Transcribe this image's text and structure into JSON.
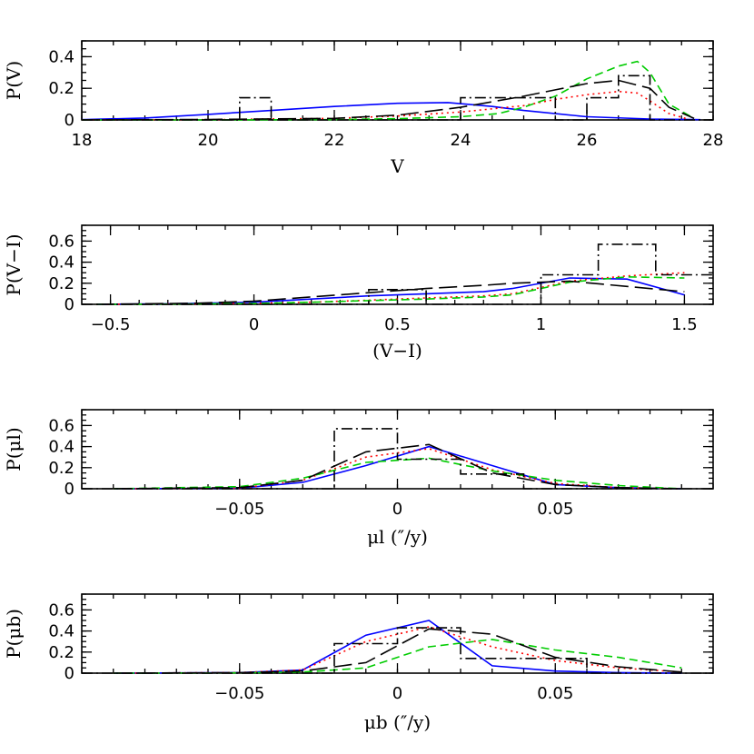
{
  "chart_data": [
    {
      "type": "line",
      "xlabel": "V",
      "ylabel": "P(V)",
      "xlim": [
        18,
        28
      ],
      "ylim": [
        0,
        0.5
      ],
      "xticks": [
        "18",
        "20",
        "22",
        "24",
        "26",
        "28"
      ],
      "yticks": [
        "0",
        "0.2",
        "0.4"
      ],
      "grid": false,
      "series": [
        {
          "style": "solid",
          "color": "#0000ff",
          "x": [
            18,
            19,
            20,
            21,
            22,
            23,
            23.8,
            24.5,
            25,
            26,
            27,
            27.8
          ],
          "y": [
            0.002,
            0.012,
            0.035,
            0.06,
            0.085,
            0.105,
            0.11,
            0.085,
            0.06,
            0.02,
            0.006,
            0.002
          ]
        },
        {
          "style": "dotted",
          "color": "#ff0000",
          "x": [
            18,
            20,
            22,
            23,
            24,
            25,
            25.5,
            26,
            26.5,
            26.8,
            27,
            27.3,
            27.6
          ],
          "y": [
            0,
            0.002,
            0.01,
            0.025,
            0.05,
            0.09,
            0.13,
            0.16,
            0.18,
            0.17,
            0.12,
            0.04,
            0.005
          ]
        },
        {
          "style": "dashed-short",
          "color": "#00cc00",
          "x": [
            18,
            20,
            22,
            23,
            24,
            24.6,
            25,
            25.5,
            26,
            26.5,
            26.8,
            27,
            27.3,
            27.7
          ],
          "y": [
            0,
            0,
            0.002,
            0.008,
            0.02,
            0.04,
            0.08,
            0.15,
            0.26,
            0.34,
            0.37,
            0.3,
            0.1,
            0.01
          ]
        },
        {
          "style": "dashed-long",
          "color": "#000000",
          "x": [
            18,
            20,
            22,
            23,
            24,
            25,
            25.5,
            26,
            26.5,
            27,
            27.3,
            27.7
          ],
          "y": [
            0,
            0.003,
            0.01,
            0.03,
            0.08,
            0.15,
            0.19,
            0.23,
            0.25,
            0.2,
            0.08,
            0.01
          ]
        },
        {
          "style": "dashdot-hist",
          "color": "#000000",
          "x": [
            18,
            20.5,
            20.5,
            21,
            21,
            24,
            24,
            25.5,
            25.5,
            26,
            26,
            26.5,
            26.5,
            27,
            27,
            28
          ],
          "y": [
            0,
            0,
            0.14,
            0.14,
            0,
            0,
            0.14,
            0.14,
            0,
            0,
            0.14,
            0.14,
            0.28,
            0.28,
            0,
            0
          ]
        }
      ]
    },
    {
      "type": "line",
      "xlabel": "(V−I)",
      "ylabel": "P(V−I)",
      "xlim": [
        -0.6,
        1.6
      ],
      "ylim": [
        0,
        0.75
      ],
      "xticks": [
        "−0.5",
        "0",
        "0.5",
        "1",
        "1.5"
      ],
      "yticks": [
        "0",
        "0.2",
        "0.4",
        "0.6"
      ],
      "grid": false,
      "series": [
        {
          "style": "solid",
          "color": "#0000ff",
          "x": [
            -0.55,
            -0.3,
            0,
            0.2,
            0.4,
            0.6,
            0.8,
            0.9,
            1.1,
            1.3,
            1.5
          ],
          "y": [
            0,
            0.005,
            0.02,
            0.05,
            0.08,
            0.1,
            0.12,
            0.15,
            0.25,
            0.24,
            0.09
          ]
        },
        {
          "style": "dotted",
          "color": "#ff0000",
          "x": [
            -0.55,
            -0.2,
            0,
            0.2,
            0.4,
            0.6,
            0.8,
            0.9,
            1.1,
            1.3,
            1.5
          ],
          "y": [
            0,
            0.005,
            0.01,
            0.02,
            0.04,
            0.06,
            0.08,
            0.1,
            0.22,
            0.27,
            0.3
          ]
        },
        {
          "style": "dashed-short",
          "color": "#00cc00",
          "x": [
            -0.55,
            -0.2,
            0,
            0.2,
            0.4,
            0.6,
            0.8,
            0.9,
            1.1,
            1.3,
            1.5
          ],
          "y": [
            0,
            0.004,
            0.008,
            0.02,
            0.035,
            0.05,
            0.07,
            0.09,
            0.21,
            0.26,
            0.25
          ]
        },
        {
          "style": "dashed-long",
          "color": "#000000",
          "x": [
            -0.55,
            -0.2,
            0,
            0.2,
            0.4,
            0.6,
            0.8,
            0.9,
            1.1,
            1.3,
            1.5
          ],
          "y": [
            0,
            0.01,
            0.03,
            0.07,
            0.11,
            0.15,
            0.18,
            0.2,
            0.22,
            0.17,
            0.12
          ]
        },
        {
          "style": "dashdot-hist",
          "color": "#000000",
          "x": [
            -0.6,
            0.4,
            0.4,
            0.6,
            0.6,
            1.0,
            1.0,
            1.2,
            1.2,
            1.4,
            1.4,
            1.6
          ],
          "y": [
            0,
            0,
            0.14,
            0.14,
            0,
            0,
            0.28,
            0.28,
            0.57,
            0.57,
            0.28,
            0.28
          ]
        }
      ]
    },
    {
      "type": "line",
      "xlabel": "μl (″/y)",
      "ylabel": "P(μl)",
      "xlim": [
        -0.1,
        0.1
      ],
      "ylim": [
        0,
        0.75
      ],
      "xticks": [
        "−0.05",
        "0",
        "0.05"
      ],
      "yticks": [
        "0",
        "0.2",
        "0.4",
        "0.6"
      ],
      "grid": false,
      "series": [
        {
          "style": "solid",
          "color": "#0000ff",
          "x": [
            -0.09,
            -0.05,
            -0.03,
            -0.01,
            0.01,
            0.03,
            0.05,
            0.07,
            0.09
          ],
          "y": [
            0,
            0.005,
            0.06,
            0.22,
            0.4,
            0.22,
            0.04,
            0.01,
            0
          ]
        },
        {
          "style": "dotted",
          "color": "#ff0000",
          "x": [
            -0.09,
            -0.05,
            -0.03,
            -0.01,
            0.01,
            0.03,
            0.05,
            0.07,
            0.09
          ],
          "y": [
            0,
            0.005,
            0.08,
            0.3,
            0.38,
            0.18,
            0.05,
            0.01,
            0
          ]
        },
        {
          "style": "dashed-short",
          "color": "#00cc00",
          "x": [
            -0.09,
            -0.05,
            -0.03,
            -0.01,
            0.01,
            0.03,
            0.05,
            0.07,
            0.09
          ],
          "y": [
            0,
            0.02,
            0.1,
            0.25,
            0.29,
            0.17,
            0.08,
            0.03,
            0
          ]
        },
        {
          "style": "dashed-long",
          "color": "#000000",
          "x": [
            -0.09,
            -0.05,
            -0.03,
            -0.01,
            0.01,
            0.03,
            0.05,
            0.07,
            0.09
          ],
          "y": [
            0,
            0.01,
            0.08,
            0.35,
            0.42,
            0.15,
            0.04,
            0.01,
            0
          ]
        },
        {
          "style": "dashdot-hist",
          "color": "#000000",
          "x": [
            -0.1,
            -0.02,
            -0.02,
            0,
            0,
            0.02,
            0.02,
            0.04,
            0.04,
            0.1
          ],
          "y": [
            0,
            0,
            0.57,
            0.57,
            0.28,
            0.28,
            0.14,
            0.14,
            0,
            0
          ]
        }
      ]
    },
    {
      "type": "line",
      "xlabel": "μb (″/y)",
      "ylabel": "P(μb)",
      "xlim": [
        -0.1,
        0.1
      ],
      "ylim": [
        0,
        0.75
      ],
      "xticks": [
        "−0.05",
        "0",
        "0.05"
      ],
      "yticks": [
        "0",
        "0.2",
        "0.4",
        "0.6"
      ],
      "grid": false,
      "series": [
        {
          "style": "solid",
          "color": "#0000ff",
          "x": [
            -0.09,
            -0.05,
            -0.03,
            -0.01,
            0.01,
            0.03,
            0.05,
            0.07,
            0.09
          ],
          "y": [
            0,
            0.005,
            0.03,
            0.36,
            0.5,
            0.07,
            0.02,
            0.005,
            0
          ]
        },
        {
          "style": "dotted",
          "color": "#ff0000",
          "x": [
            -0.09,
            -0.05,
            -0.03,
            -0.01,
            0.01,
            0.03,
            0.05,
            0.07,
            0.09
          ],
          "y": [
            0,
            0.005,
            0.03,
            0.3,
            0.44,
            0.25,
            0.12,
            0.05,
            0.01
          ]
        },
        {
          "style": "dashed-short",
          "color": "#00cc00",
          "x": [
            -0.09,
            -0.05,
            -0.03,
            -0.01,
            0.01,
            0.03,
            0.05,
            0.07,
            0.09
          ],
          "y": [
            0,
            0.003,
            0.01,
            0.05,
            0.25,
            0.32,
            0.22,
            0.15,
            0.05
          ]
        },
        {
          "style": "dashed-long",
          "color": "#000000",
          "x": [
            -0.09,
            -0.05,
            -0.03,
            -0.01,
            0.01,
            0.03,
            0.05,
            0.07,
            0.09
          ],
          "y": [
            0,
            0.004,
            0.02,
            0.1,
            0.42,
            0.37,
            0.15,
            0.06,
            0.01
          ]
        },
        {
          "style": "dashdot-hist",
          "color": "#000000",
          "x": [
            -0.1,
            -0.02,
            -0.02,
            0,
            0,
            0.02,
            0.02,
            0.06,
            0.06,
            0.1
          ],
          "y": [
            0,
            0,
            0.28,
            0.28,
            0.43,
            0.43,
            0.14,
            0.14,
            0,
            0
          ]
        }
      ]
    }
  ]
}
